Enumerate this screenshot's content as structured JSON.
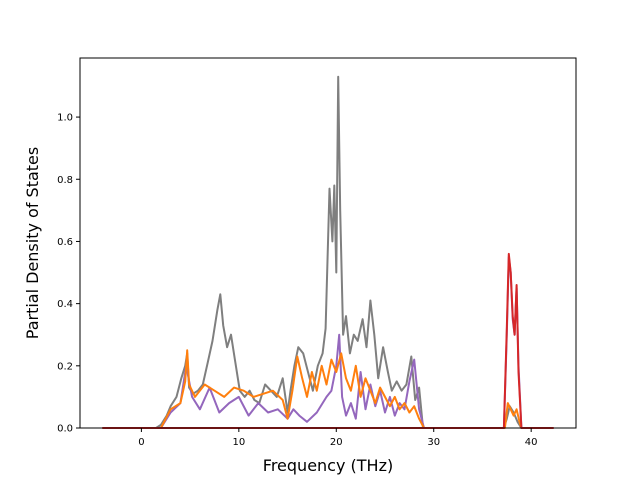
{
  "chart_data": {
    "type": "line",
    "title": "",
    "xlabel": "Frequency (THz)",
    "ylabel": "Partial Density of States",
    "xlim": [
      -6.3,
      44.6
    ],
    "ylim": [
      0,
      1.19
    ],
    "xticks": [
      0,
      10,
      20,
      30,
      40
    ],
    "yticks": [
      0.0,
      0.2,
      0.4,
      0.6,
      0.8,
      1.0
    ],
    "xtick_labels": [
      "0",
      "10",
      "20",
      "30",
      "40"
    ],
    "ytick_labels": [
      "0.0",
      "0.2",
      "0.4",
      "0.6",
      "0.8",
      "1.0"
    ],
    "grid": false,
    "legend": "none",
    "series": [
      {
        "color": "#7f7f7f",
        "x": [
          -4.0,
          1.5,
          2.0,
          2.6,
          3.0,
          3.6,
          4.1,
          4.5,
          4.7,
          4.9,
          5.3,
          5.8,
          6.3,
          6.8,
          7.3,
          7.8,
          8.1,
          8.4,
          8.8,
          9.2,
          9.6,
          10.1,
          10.6,
          11.1,
          11.6,
          12.1,
          12.7,
          13.3,
          13.9,
          14.5,
          15.0,
          15.3,
          15.7,
          16.1,
          16.6,
          17.1,
          17.6,
          18.1,
          18.6,
          18.9,
          19.3,
          19.6,
          19.8,
          20.0,
          20.2,
          20.4,
          20.7,
          21.0,
          21.4,
          21.8,
          22.2,
          22.7,
          23.1,
          23.5,
          23.9,
          24.3,
          24.8,
          25.3,
          25.7,
          26.2,
          26.7,
          27.2,
          27.7,
          28.1,
          28.5,
          28.9,
          29.5,
          37.2,
          37.5,
          37.8,
          38.2,
          38.6,
          39.0,
          42.3
        ],
        "y": [
          0.0,
          0.0,
          0.01,
          0.04,
          0.07,
          0.1,
          0.16,
          0.2,
          0.24,
          0.13,
          0.11,
          0.12,
          0.14,
          0.21,
          0.28,
          0.38,
          0.43,
          0.33,
          0.26,
          0.3,
          0.22,
          0.12,
          0.1,
          0.12,
          0.09,
          0.08,
          0.14,
          0.12,
          0.1,
          0.16,
          0.05,
          0.12,
          0.2,
          0.26,
          0.24,
          0.18,
          0.12,
          0.2,
          0.24,
          0.32,
          0.77,
          0.6,
          0.78,
          0.5,
          1.13,
          0.7,
          0.3,
          0.36,
          0.24,
          0.3,
          0.28,
          0.35,
          0.26,
          0.41,
          0.3,
          0.16,
          0.26,
          0.18,
          0.12,
          0.15,
          0.12,
          0.14,
          0.23,
          0.09,
          0.13,
          0.0,
          0.0,
          0.0,
          0.03,
          0.07,
          0.05,
          0.02,
          0.0,
          0.0
        ]
      },
      {
        "color": "#9467bd",
        "x": [
          -4.0,
          2.0,
          3.0,
          4.0,
          4.6,
          5.2,
          6.0,
          7.0,
          8.0,
          9.0,
          10.0,
          11.0,
          12.0,
          13.0,
          14.0,
          15.0,
          15.6,
          16.2,
          17.0,
          18.0,
          19.0,
          19.5,
          20.0,
          20.3,
          20.6,
          21.0,
          21.5,
          22.0,
          22.5,
          23.0,
          23.5,
          24.0,
          24.5,
          25.0,
          25.5,
          26.0,
          26.5,
          27.0,
          27.5,
          28.0,
          28.5,
          29.0,
          37.2,
          37.5,
          37.7,
          37.9,
          38.1,
          38.3,
          38.5,
          38.7,
          39.0,
          42.3
        ],
        "y": [
          0.0,
          0.0,
          0.05,
          0.08,
          0.2,
          0.1,
          0.06,
          0.13,
          0.05,
          0.08,
          0.1,
          0.04,
          0.08,
          0.05,
          0.06,
          0.03,
          0.06,
          0.04,
          0.02,
          0.05,
          0.1,
          0.12,
          0.2,
          0.3,
          0.1,
          0.04,
          0.08,
          0.03,
          0.18,
          0.06,
          0.14,
          0.07,
          0.12,
          0.05,
          0.1,
          0.04,
          0.08,
          0.06,
          0.15,
          0.22,
          0.06,
          0.0,
          0.0,
          0.3,
          0.55,
          0.5,
          0.35,
          0.3,
          0.45,
          0.2,
          0.0,
          0.0
        ]
      },
      {
        "color": "#ff7f0e",
        "x": [
          -4.0,
          2.0,
          3.0,
          4.0,
          4.5,
          4.7,
          4.9,
          5.5,
          6.5,
          7.5,
          8.5,
          9.5,
          10.5,
          11.5,
          12.5,
          13.5,
          14.5,
          15.0,
          15.5,
          16.0,
          16.5,
          17.0,
          17.5,
          18.0,
          18.5,
          19.0,
          19.5,
          20.0,
          20.5,
          21.0,
          21.5,
          22.0,
          22.5,
          23.0,
          23.5,
          24.0,
          24.5,
          25.0,
          25.5,
          26.0,
          26.5,
          27.0,
          27.5,
          28.0,
          28.5,
          29.0,
          37.3,
          37.6,
          37.9,
          38.2,
          38.5,
          38.8,
          39.0,
          42.3
        ],
        "y": [
          0.0,
          0.0,
          0.06,
          0.08,
          0.15,
          0.25,
          0.14,
          0.1,
          0.14,
          0.12,
          0.1,
          0.13,
          0.12,
          0.1,
          0.11,
          0.12,
          0.09,
          0.03,
          0.12,
          0.23,
          0.16,
          0.1,
          0.18,
          0.12,
          0.2,
          0.14,
          0.22,
          0.18,
          0.24,
          0.16,
          0.12,
          0.2,
          0.1,
          0.16,
          0.12,
          0.08,
          0.13,
          0.1,
          0.07,
          0.1,
          0.06,
          0.08,
          0.05,
          0.07,
          0.03,
          0.0,
          0.0,
          0.08,
          0.06,
          0.04,
          0.06,
          0.02,
          0.0,
          0.0
        ]
      },
      {
        "color": "#d62728",
        "x": [
          -4.0,
          37.2,
          37.5,
          37.7,
          37.9,
          38.1,
          38.3,
          38.5,
          38.7,
          39.0,
          42.3
        ],
        "y": [
          0.0,
          0.0,
          0.32,
          0.56,
          0.5,
          0.36,
          0.3,
          0.46,
          0.18,
          0.0,
          0.0
        ]
      }
    ]
  }
}
